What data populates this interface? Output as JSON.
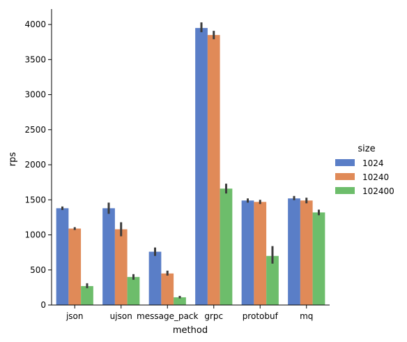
{
  "chart_data": {
    "type": "bar",
    "xlabel": "method",
    "ylabel": "rps",
    "categories": [
      "json",
      "ujson",
      "message_pack",
      "grpc",
      "protobuf",
      "mq"
    ],
    "ylim": [
      0,
      4220
    ],
    "yticks": [
      0,
      500,
      1000,
      1500,
      2000,
      2500,
      3000,
      3500,
      4000
    ],
    "legend": {
      "title": "size",
      "placement": "right"
    },
    "series": [
      {
        "name": "1024",
        "color": "#5a7ec7",
        "values": [
          1380,
          1380,
          760,
          3950,
          1490,
          1520
        ],
        "ci": [
          [
            1355,
            1405
          ],
          [
            1300,
            1460
          ],
          [
            700,
            820
          ],
          [
            3890,
            4030
          ],
          [
            1460,
            1520
          ],
          [
            1495,
            1555
          ]
        ]
      },
      {
        "name": "10240",
        "color": "#e08a58",
        "values": [
          1090,
          1080,
          450,
          3850,
          1470,
          1490
        ],
        "ci": [
          [
            1070,
            1110
          ],
          [
            980,
            1180
          ],
          [
            420,
            490
          ],
          [
            3790,
            3910
          ],
          [
            1440,
            1500
          ],
          [
            1450,
            1530
          ]
        ]
      },
      {
        "name": "102400",
        "color": "#6dbd6b",
        "values": [
          270,
          400,
          110,
          1660,
          700,
          1320
        ],
        "ci": [
          [
            240,
            310
          ],
          [
            360,
            440
          ],
          [
            95,
            130
          ],
          [
            1590,
            1730
          ],
          [
            590,
            840
          ],
          [
            1280,
            1360
          ]
        ]
      }
    ]
  }
}
